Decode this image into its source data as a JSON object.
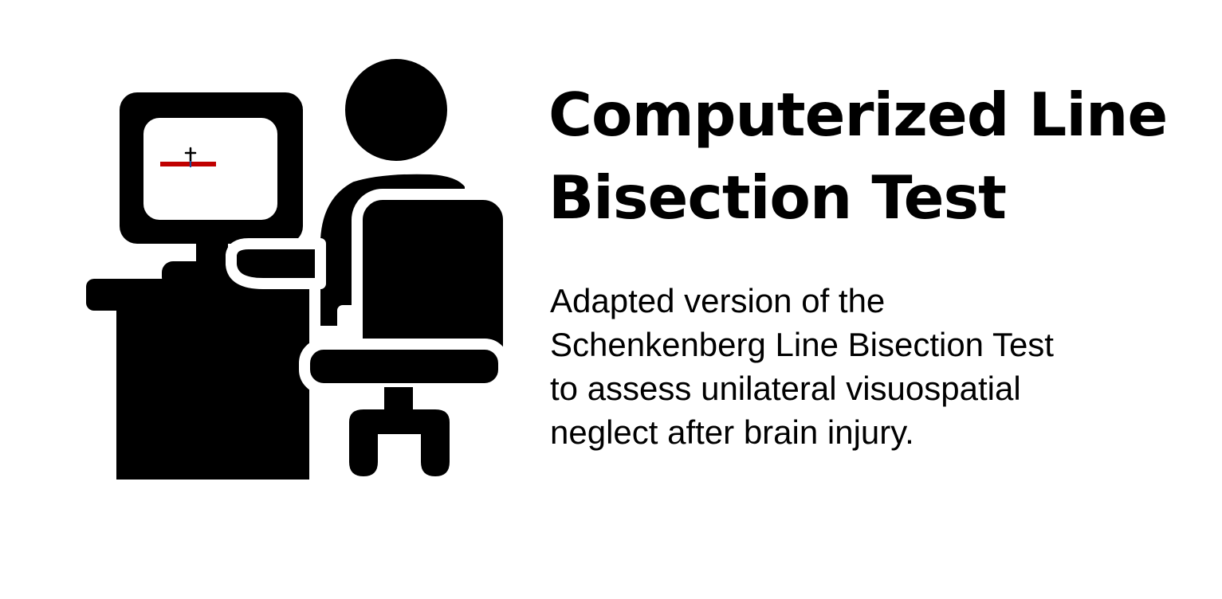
{
  "title": {
    "lines": [
      "Computerized Line",
      "Bisection Test"
    ]
  },
  "description": {
    "lines": [
      "Adapted version of the",
      "Schenkenberg Line Bisection Test",
      "to assess unilateral visuospatial",
      "neglect after brain injury."
    ]
  },
  "illustration": {
    "icon": "person-at-computer-icon",
    "figure_color": "#000000",
    "screen_color": "#ffffff",
    "line_color": "#c00000",
    "cursor_icon": "crosshair-cursor-icon"
  }
}
